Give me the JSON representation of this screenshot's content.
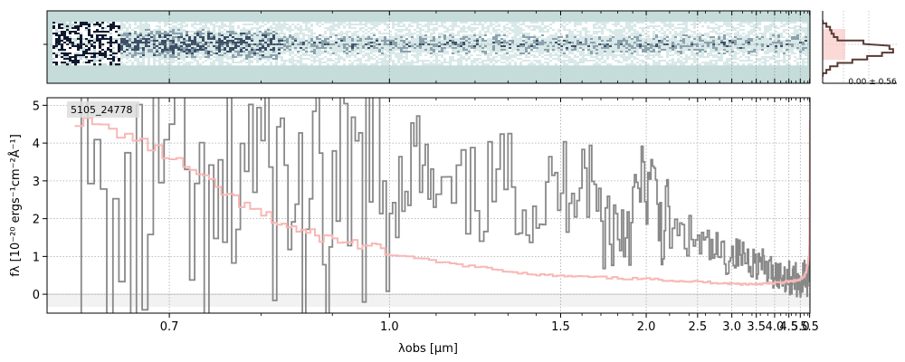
{
  "chart_data": [
    {
      "type": "heatmap",
      "panel": "2d-spectrum",
      "colors": {
        "background": "#c5dcdb",
        "dark": "#10192f",
        "white": "#ffffff"
      }
    },
    {
      "type": "line",
      "panel": "profile",
      "profile_x": [
        0.0,
        0.05,
        0.1,
        0.12,
        0.15,
        0.2,
        0.55,
        0.9,
        0.95,
        0.8,
        0.6,
        0.4,
        0.2,
        0.1,
        0.05,
        0.0
      ],
      "profile_y": [
        0,
        2,
        4,
        6,
        8,
        10,
        12,
        15,
        17,
        19,
        21,
        23,
        25,
        27,
        29,
        31
      ],
      "annotation": "0.00 ± 0.56",
      "colors": {
        "line": "#5a3a33",
        "fill": "#f8c9c4"
      }
    },
    {
      "type": "line",
      "panel": "1d-spectrum",
      "label": "5105_24778",
      "xlabel": "λobs [μm]",
      "ylabel": "fλ [10⁻²⁰ ergs⁻¹cm⁻²Å⁻¹]",
      "xscale": "reciprocal",
      "xlim": [
        0.6,
        5.52
      ],
      "ylim": [
        -0.5,
        5.2
      ],
      "xticks": [
        0.7,
        1.0,
        1.5,
        2.0,
        2.5,
        3.0,
        3.5,
        4.0,
        4.5,
        5.0,
        5.5
      ],
      "xtick_labels": [
        "0.7",
        "1.0",
        "1.5",
        "2.0",
        "2.5",
        "3.0",
        "3.5",
        "4.0",
        "4.5",
        "5.0",
        "5.5"
      ],
      "xminor": [
        0.8,
        0.9,
        1.1,
        1.2,
        1.3,
        1.4,
        1.6,
        1.7,
        1.8,
        1.9,
        2.2,
        2.4,
        2.6,
        2.8,
        3.2,
        3.4,
        3.6,
        3.8,
        4.2,
        4.4,
        4.6,
        4.8,
        5.2,
        5.4
      ],
      "yticks": [
        0,
        1,
        2,
        3,
        4,
        5
      ],
      "ytick_labels": [
        "0",
        "1",
        "2",
        "3",
        "4",
        "5"
      ],
      "grid": true,
      "series": [
        {
          "role": "flux",
          "color": "#888888",
          "x": [
            0.62,
            0.66,
            0.7,
            0.74,
            0.78,
            0.82,
            0.86,
            0.9,
            0.95,
            1.0,
            1.05,
            1.1,
            1.2,
            1.3,
            1.4,
            1.5,
            1.6,
            1.7,
            1.8,
            1.9,
            2.0,
            2.1,
            2.2,
            2.4,
            2.6,
            2.8,
            3.0,
            3.2,
            3.4,
            3.6,
            3.8,
            4.0,
            4.2,
            4.4,
            4.6,
            4.8,
            5.0,
            5.2,
            5.4,
            5.48,
            5.51
          ],
          "y": [
            2.5,
            1.0,
            3.5,
            0.5,
            4.0,
            3.0,
            2.0,
            1.5,
            3.2,
            2.5,
            3.8,
            2.2,
            2.6,
            3.0,
            2.4,
            2.8,
            3.5,
            2.0,
            1.8,
            2.2,
            3.0,
            2.1,
            1.6,
            1.5,
            1.2,
            1.0,
            1.1,
            1.0,
            0.9,
            0.8,
            0.6,
            0.6,
            0.5,
            0.5,
            0.4,
            0.4,
            0.3,
            0.5,
            0.3,
            1.2,
            2.5
          ]
        },
        {
          "role": "error",
          "color": "#f7b8b5",
          "x": [
            0.62,
            0.66,
            0.7,
            0.74,
            0.78,
            0.82,
            0.86,
            0.9,
            0.95,
            1.0,
            1.1,
            1.2,
            1.3,
            1.4,
            1.5,
            1.6,
            1.8,
            2.0,
            2.2,
            2.4,
            2.6,
            2.8,
            3.0,
            3.2,
            3.4,
            3.6,
            3.8,
            4.0,
            4.2,
            4.4,
            4.6,
            4.8,
            5.0,
            5.2,
            5.3,
            5.4,
            5.45,
            5.48,
            5.5,
            5.51
          ],
          "y": [
            4.6,
            4.2,
            3.6,
            2.9,
            2.3,
            1.9,
            1.6,
            1.45,
            1.3,
            1.05,
            0.85,
            0.72,
            0.6,
            0.52,
            0.48,
            0.46,
            0.42,
            0.4,
            0.37,
            0.34,
            0.32,
            0.3,
            0.28,
            0.27,
            0.27,
            0.28,
            0.28,
            0.3,
            0.31,
            0.33,
            0.34,
            0.36,
            0.39,
            0.48,
            0.6,
            0.85,
            1.0,
            1.3,
            2.6,
            4.6
          ]
        }
      ]
    }
  ]
}
